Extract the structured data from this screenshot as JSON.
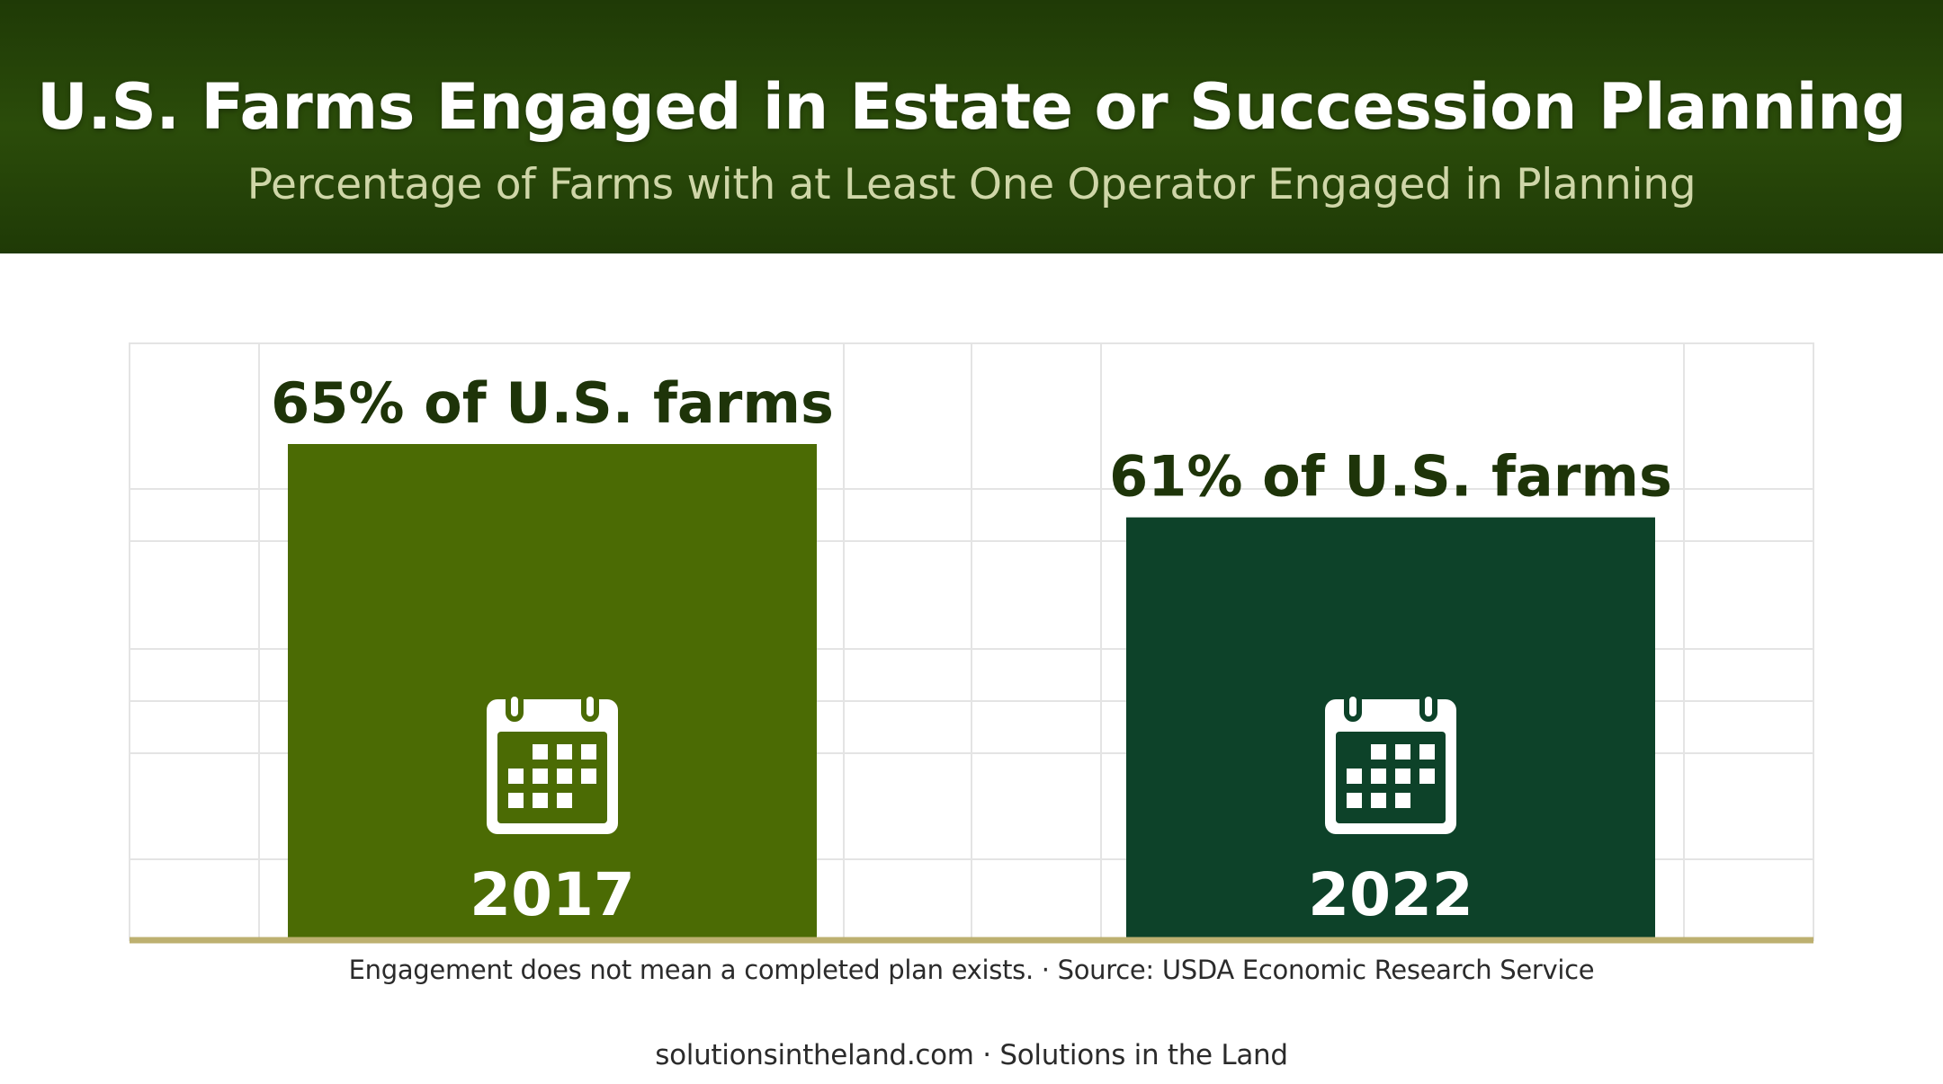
{
  "header": {
    "title": "U.S. Farms Engaged in Estate or Succession Planning",
    "subtitle": "Percentage of Farms with at Least One Operator Engaged in Planning"
  },
  "chart_data": {
    "type": "bar",
    "categories": [
      "2017",
      "2022"
    ],
    "values": [
      65,
      61
    ],
    "value_labels": [
      "65% of U.S. farms",
      "61% of U.S. farms"
    ],
    "unit": "%",
    "ylim": [
      0,
      100
    ],
    "grid": true,
    "bar_colors": [
      "#4b6b04",
      "#0d4229"
    ],
    "icon": "calendar-icon"
  },
  "note": "Engagement does not mean a completed plan exists. · Source: USDA Economic Research Service",
  "footer": "solutionsintheland.com · Solutions in the Land",
  "colors": {
    "header_bg": "#243f08",
    "axis_line": "#bdb070",
    "grid": "#e4e4e4"
  }
}
